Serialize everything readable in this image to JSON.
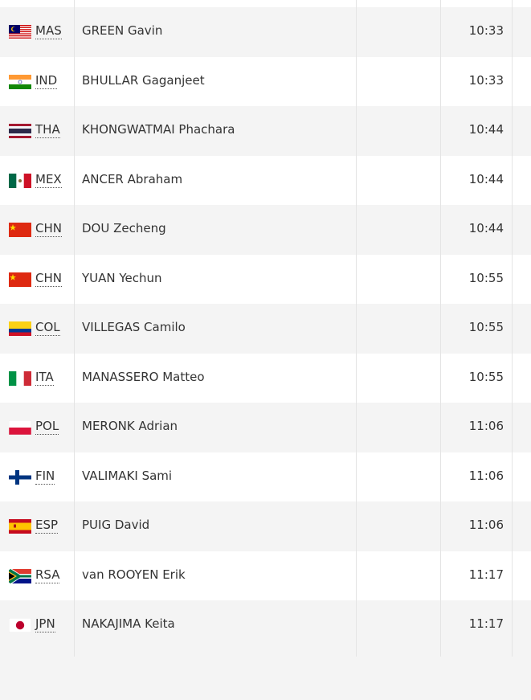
{
  "table": {
    "rows": [
      [
        "MAS",
        "GREEN Gavin",
        "10:33"
      ],
      [
        "IND",
        "BHULLAR Gaganjeet",
        "10:33"
      ],
      [
        "THA",
        "KHONGWATMAI Phachara",
        "10:44"
      ],
      [
        "MEX",
        "ANCER Abraham",
        "10:44"
      ],
      [
        "CHN",
        "DOU Zecheng",
        "10:44"
      ],
      [
        "CHN",
        "YUAN Yechun",
        "10:55"
      ],
      [
        "COL",
        "VILLEGAS Camilo",
        "10:55"
      ],
      [
        "ITA",
        "MANASSERO Matteo",
        "10:55"
      ],
      [
        "POL",
        "MERONK Adrian",
        "11:06"
      ],
      [
        "FIN",
        "VALIMAKI Sami",
        "11:06"
      ],
      [
        "ESP",
        "PUIG David",
        "11:06"
      ],
      [
        "RSA",
        "van ROOYEN Erik",
        "11:17"
      ],
      [
        "JPN",
        "NAKAJIMA Keita",
        "11:17"
      ]
    ]
  }
}
